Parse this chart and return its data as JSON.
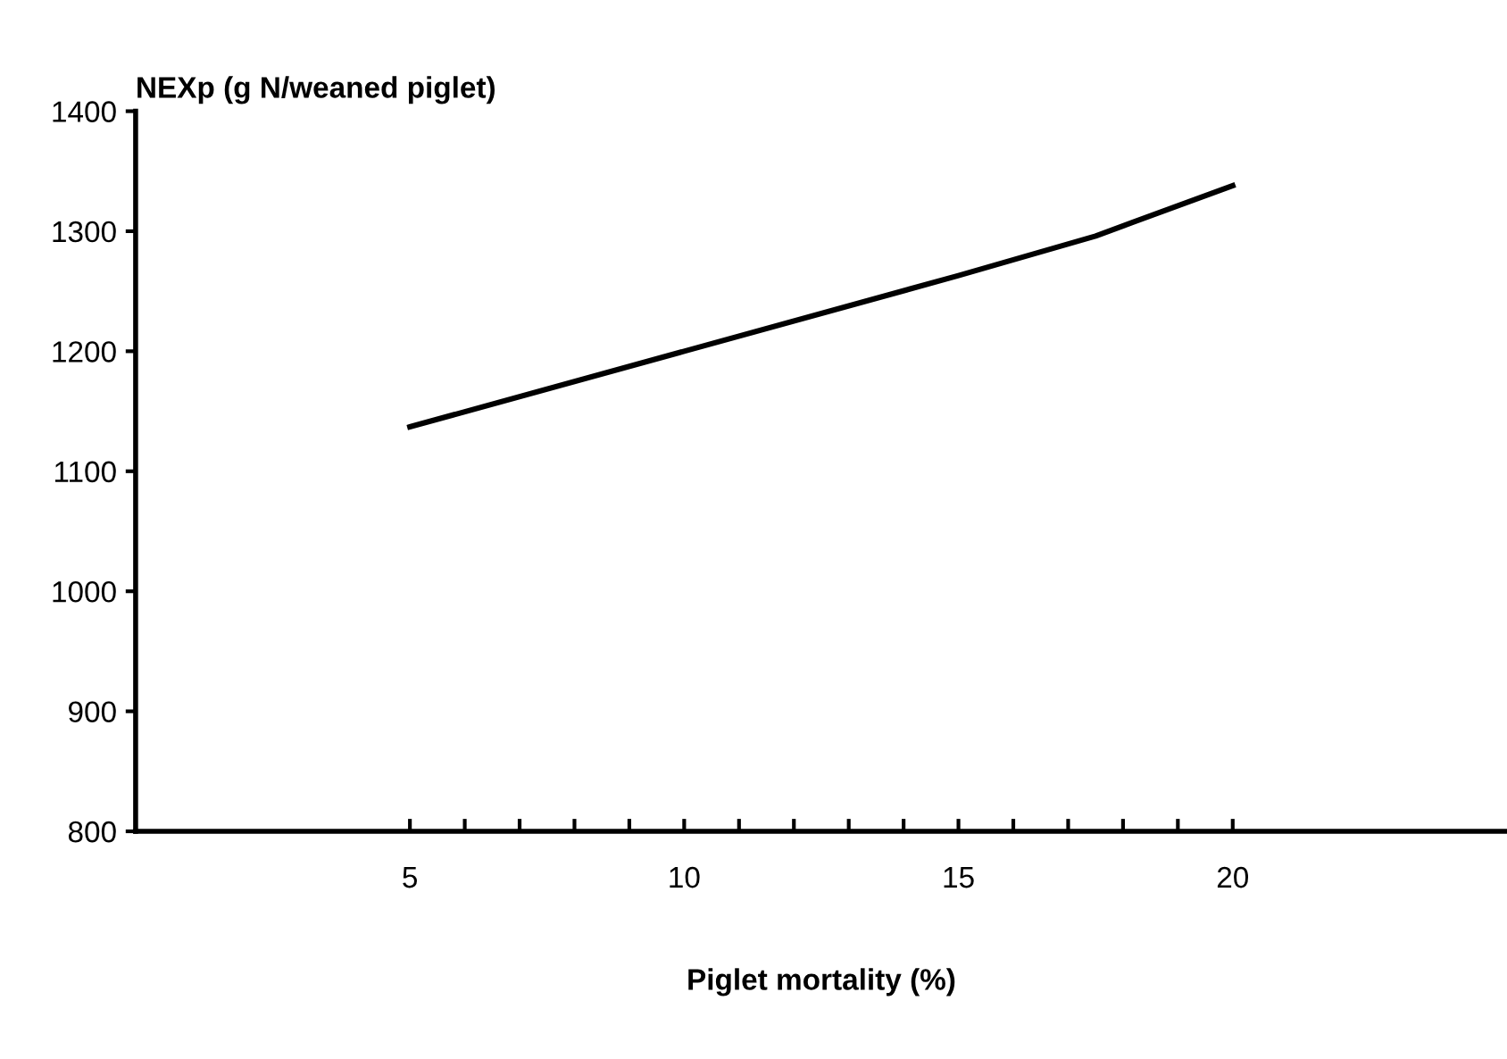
{
  "chart_data": {
    "type": "line",
    "ylabel": "NEXp (g N/weaned piglet)",
    "xlabel": "Piglet mortality (%)",
    "x": [
      5,
      10,
      15,
      17.5,
      20
    ],
    "series": [
      {
        "color": "#000000",
        "values": [
          1137,
          1200,
          1263,
          1296,
          1338
        ]
      }
    ],
    "xlim": [
      0,
      25
    ],
    "xticks": [
      5,
      {
        "value": 6,
        "label": null
      },
      {
        "value": 7,
        "label": null
      },
      {
        "value": 8,
        "label": null
      },
      {
        "value": 9,
        "label": null
      },
      10,
      {
        "value": 11,
        "label": null
      },
      {
        "value": 12,
        "label": null
      },
      {
        "value": 13,
        "label": null
      },
      {
        "value": 14,
        "label": null
      },
      15,
      {
        "value": 16,
        "label": null
      },
      {
        "value": 17,
        "label": null
      },
      {
        "value": 18,
        "label": null
      },
      {
        "value": 19,
        "label": null
      },
      20
    ],
    "ylim": [
      800,
      1400
    ],
    "yticks": [
      800,
      900,
      1000,
      1100,
      1200,
      1300,
      1400
    ],
    "grid": false,
    "legend": false,
    "marker": "none",
    "line_style": "solid"
  }
}
